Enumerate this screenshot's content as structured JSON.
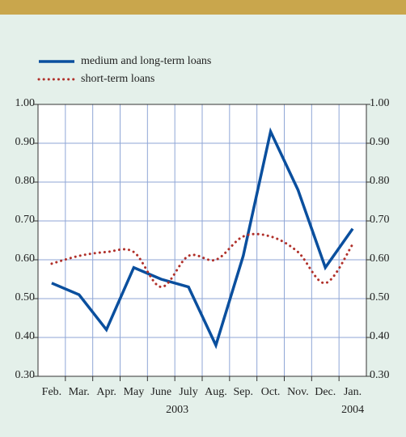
{
  "chart_data": {
    "type": "line",
    "categories": [
      "Feb.",
      "Mar.",
      "Apr.",
      "May",
      "June",
      "July",
      "Aug.",
      "Sep.",
      "Oct.",
      "Nov.",
      "Dec.",
      "Jan."
    ],
    "year_labels": [
      "2003",
      "2004"
    ],
    "series": [
      {
        "name": "medium and long-term loans",
        "color": "#0a4f9e",
        "style": "solid",
        "values": [
          0.54,
          0.51,
          0.42,
          0.58,
          0.55,
          0.53,
          0.38,
          0.61,
          0.93,
          0.78,
          0.58,
          0.68
        ]
      },
      {
        "name": "short-term loans",
        "color": "#b0302a",
        "style": "dotted",
        "values": [
          0.59,
          0.61,
          0.62,
          0.62,
          0.53,
          0.61,
          0.6,
          0.66,
          0.66,
          0.62,
          0.54,
          0.64
        ]
      }
    ],
    "ylim": [
      0.3,
      1.0
    ],
    "yticks": [
      {
        "value": 0.3,
        "label": "0.30"
      },
      {
        "value": 0.4,
        "label": "0.40"
      },
      {
        "value": 0.5,
        "label": "0.50"
      },
      {
        "value": 0.6,
        "label": "0.60"
      },
      {
        "value": 0.7,
        "label": "0.70"
      },
      {
        "value": 0.8,
        "label": "0.80"
      },
      {
        "value": 0.9,
        "label": "0.90"
      },
      {
        "value": 1.0,
        "label": "1.00"
      }
    ],
    "grid": true
  }
}
